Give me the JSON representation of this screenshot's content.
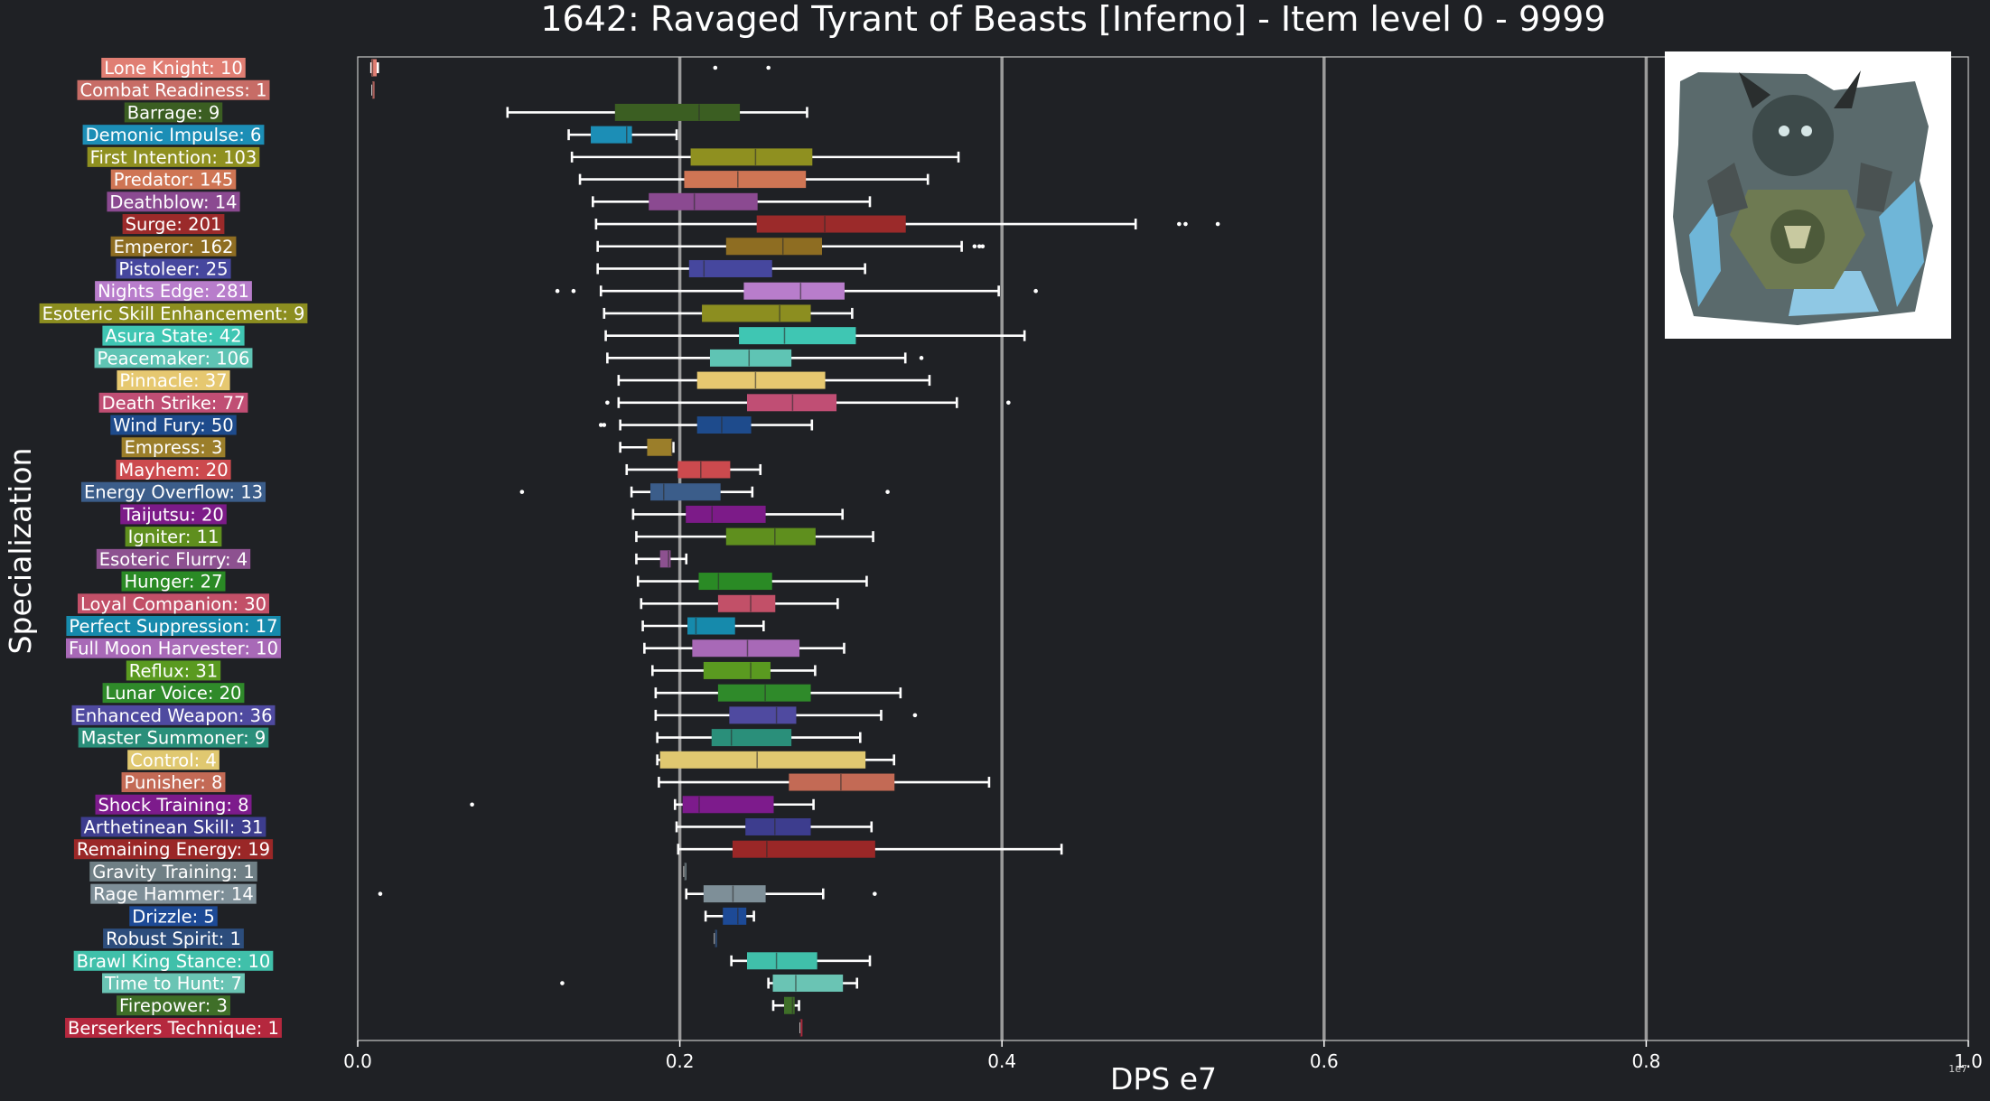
{
  "chart_data": {
    "type": "box",
    "title": "1642: Ravaged Tyrant of Beasts [Inferno] - Item level 0 - 9999",
    "xlabel": "DPS e7",
    "ylabel": "Specialization",
    "xlim": [
      0,
      1.0
    ],
    "x_ticks": [
      "0.0",
      "0.2",
      "0.4",
      "0.6",
      "0.8",
      "1.0"
    ],
    "x_exponent_label": "1e7",
    "grid": "vertical",
    "orientation": "horizontal",
    "boss_image": "boss-portrait",
    "categories": [
      {
        "label": "Lone Knight: 10",
        "color": "#e07e73",
        "whislo": 0.0085,
        "q1": 0.0088,
        "med": 0.0092,
        "q3": 0.0115,
        "whishi": 0.0125,
        "fliers": [
          0.222,
          0.255
        ]
      },
      {
        "label": "Combat Readiness: 1",
        "color": "#c76c66",
        "whislo": 0.0093,
        "q1": 0.0093,
        "med": 0.0093,
        "q3": 0.0093,
        "whishi": 0.0093,
        "fliers": []
      },
      {
        "label": "Barrage: 9",
        "color": "#3b5e22",
        "whislo": 0.093,
        "q1": 0.16,
        "med": 0.212,
        "q3": 0.237,
        "whishi": 0.279,
        "fliers": []
      },
      {
        "label": "Demonic Impulse: 6",
        "color": "#1c8eb6",
        "whislo": 0.131,
        "q1": 0.145,
        "med": 0.167,
        "q3": 0.17,
        "whishi": 0.198,
        "fliers": []
      },
      {
        "label": "First Intention: 103",
        "color": "#8f9020",
        "whislo": 0.133,
        "q1": 0.207,
        "med": 0.247,
        "q3": 0.282,
        "whishi": 0.373,
        "fliers": []
      },
      {
        "label": "Predator: 145",
        "color": "#cf7554",
        "whislo": 0.138,
        "q1": 0.203,
        "med": 0.236,
        "q3": 0.278,
        "whishi": 0.354,
        "fliers": []
      },
      {
        "label": "Deathblow: 14",
        "color": "#8b4a91",
        "whislo": 0.146,
        "q1": 0.181,
        "med": 0.209,
        "q3": 0.248,
        "whishi": 0.318,
        "fliers": []
      },
      {
        "label": "Surge: 201",
        "color": "#9b2a2a",
        "whislo": 0.148,
        "q1": 0.248,
        "med": 0.29,
        "q3": 0.34,
        "whishi": 0.483,
        "fliers": [
          0.51,
          0.514,
          0.534
        ]
      },
      {
        "label": "Emperor: 162",
        "color": "#8e6d22",
        "whislo": 0.149,
        "q1": 0.229,
        "med": 0.264,
        "q3": 0.288,
        "whishi": 0.375,
        "fliers": [
          0.383,
          0.386,
          0.388
        ]
      },
      {
        "label": "Pistoleer: 25",
        "color": "#46479e",
        "whislo": 0.149,
        "q1": 0.206,
        "med": 0.215,
        "q3": 0.257,
        "whishi": 0.315,
        "fliers": []
      },
      {
        "label": "Nights Edge: 281",
        "color": "#b87dcb",
        "whislo": 0.151,
        "q1": 0.24,
        "med": 0.275,
        "q3": 0.302,
        "whishi": 0.398,
        "fliers": [
          0.124,
          0.134,
          0.421
        ]
      },
      {
        "label": "Esoteric Skill Enhancement: 9",
        "color": "#8c8e20",
        "whislo": 0.153,
        "q1": 0.214,
        "med": 0.262,
        "q3": 0.281,
        "whishi": 0.307,
        "fliers": []
      },
      {
        "label": "Asura State: 42",
        "color": "#3fc6b3",
        "whislo": 0.154,
        "q1": 0.237,
        "med": 0.265,
        "q3": 0.309,
        "whishi": 0.414,
        "fliers": []
      },
      {
        "label": "Peacemaker: 106",
        "color": "#5fc4b4",
        "whislo": 0.155,
        "q1": 0.219,
        "med": 0.243,
        "q3": 0.269,
        "whishi": 0.34,
        "fliers": [
          0.35
        ]
      },
      {
        "label": "Pinnacle: 37",
        "color": "#e6c870",
        "whislo": 0.162,
        "q1": 0.211,
        "med": 0.247,
        "q3": 0.29,
        "whishi": 0.355,
        "fliers": []
      },
      {
        "label": "Death Strike: 77",
        "color": "#c04e74",
        "whislo": 0.162,
        "q1": 0.242,
        "med": 0.27,
        "q3": 0.297,
        "whishi": 0.372,
        "fliers": [
          0.155,
          0.404
        ]
      },
      {
        "label": "Wind Fury: 50",
        "color": "#1e4b8c",
        "whislo": 0.163,
        "q1": 0.211,
        "med": 0.226,
        "q3": 0.244,
        "whishi": 0.282,
        "fliers": [
          0.151,
          0.153
        ]
      },
      {
        "label": "Empress: 3",
        "color": "#9b7e2a",
        "whislo": 0.163,
        "q1": 0.18,
        "med": 0.195,
        "q3": 0.195,
        "whishi": 0.196,
        "fliers": []
      },
      {
        "label": "Mayhem: 20",
        "color": "#cc4a4e",
        "whislo": 0.167,
        "q1": 0.199,
        "med": 0.213,
        "q3": 0.231,
        "whishi": 0.25,
        "fliers": []
      },
      {
        "label": "Energy Overflow: 13",
        "color": "#3b5d8a",
        "whislo": 0.17,
        "q1": 0.182,
        "med": 0.19,
        "q3": 0.225,
        "whishi": 0.245,
        "fliers": [
          0.102,
          0.329
        ]
      },
      {
        "label": "Taijutsu: 20",
        "color": "#7c1b88",
        "whislo": 0.171,
        "q1": 0.204,
        "med": 0.22,
        "q3": 0.253,
        "whishi": 0.301,
        "fliers": []
      },
      {
        "label": "Igniter: 11",
        "color": "#5f8f1e",
        "whislo": 0.173,
        "q1": 0.229,
        "med": 0.259,
        "q3": 0.284,
        "whishi": 0.32,
        "fliers": []
      },
      {
        "label": "Esoteric Flurry: 4",
        "color": "#8d5190",
        "whislo": 0.173,
        "q1": 0.188,
        "med": 0.193,
        "q3": 0.194,
        "whishi": 0.204,
        "fliers": []
      },
      {
        "label": "Hunger: 27",
        "color": "#2a8a25",
        "whislo": 0.174,
        "q1": 0.212,
        "med": 0.224,
        "q3": 0.257,
        "whishi": 0.316,
        "fliers": []
      },
      {
        "label": "Loyal Companion: 30",
        "color": "#c25068",
        "whislo": 0.176,
        "q1": 0.224,
        "med": 0.244,
        "q3": 0.259,
        "whishi": 0.298,
        "fliers": []
      },
      {
        "label": "Perfect Suppression: 17",
        "color": "#168aac",
        "whislo": 0.177,
        "q1": 0.205,
        "med": 0.21,
        "q3": 0.234,
        "whishi": 0.252,
        "fliers": []
      },
      {
        "label": "Full Moon Harvester: 10",
        "color": "#a869b7",
        "whislo": 0.178,
        "q1": 0.208,
        "med": 0.242,
        "q3": 0.274,
        "whishi": 0.302,
        "fliers": []
      },
      {
        "label": "Reflux: 31",
        "color": "#5a9a20",
        "whislo": 0.183,
        "q1": 0.215,
        "med": 0.244,
        "q3": 0.256,
        "whishi": 0.284,
        "fliers": []
      },
      {
        "label": "Lunar Voice: 20",
        "color": "#2f8a2a",
        "whislo": 0.185,
        "q1": 0.224,
        "med": 0.253,
        "q3": 0.281,
        "whishi": 0.337,
        "fliers": []
      },
      {
        "label": "Enhanced Weapon: 36",
        "color": "#4f4aa0",
        "whislo": 0.185,
        "q1": 0.231,
        "med": 0.26,
        "q3": 0.272,
        "whishi": 0.325,
        "fliers": [
          0.346
        ]
      },
      {
        "label": "Master Summoner: 9",
        "color": "#2a8f7a",
        "whislo": 0.186,
        "q1": 0.22,
        "med": 0.232,
        "q3": 0.269,
        "whishi": 0.312,
        "fliers": []
      },
      {
        "label": "Control: 4",
        "color": "#e0c870",
        "whislo": 0.186,
        "q1": 0.188,
        "med": 0.248,
        "q3": 0.315,
        "whishi": 0.333,
        "fliers": []
      },
      {
        "label": "Punisher: 8",
        "color": "#c36a55",
        "whislo": 0.187,
        "q1": 0.268,
        "med": 0.3,
        "q3": 0.333,
        "whishi": 0.392,
        "fliers": []
      },
      {
        "label": "Shock Training: 8",
        "color": "#7d1b8c",
        "whislo": 0.197,
        "q1": 0.202,
        "med": 0.212,
        "q3": 0.258,
        "whishi": 0.283,
        "fliers": [
          0.071
        ]
      },
      {
        "label": "Arthetinean Skill: 31",
        "color": "#3d3d8e",
        "whislo": 0.198,
        "q1": 0.241,
        "med": 0.259,
        "q3": 0.281,
        "whishi": 0.319,
        "fliers": []
      },
      {
        "label": "Remaining Energy: 19",
        "color": "#9a2727",
        "whislo": 0.199,
        "q1": 0.233,
        "med": 0.254,
        "q3": 0.321,
        "whishi": 0.437,
        "fliers": []
      },
      {
        "label": "Gravity Training: 1",
        "color": "#6f7f85",
        "whislo": 0.203,
        "q1": 0.203,
        "med": 0.203,
        "q3": 0.203,
        "whishi": 0.203,
        "fliers": []
      },
      {
        "label": "Rage Hammer: 14",
        "color": "#7e8f98",
        "whislo": 0.204,
        "q1": 0.215,
        "med": 0.233,
        "q3": 0.253,
        "whishi": 0.289,
        "fliers": [
          0.014,
          0.321
        ]
      },
      {
        "label": "Drizzle: 5",
        "color": "#1d4a96",
        "whislo": 0.216,
        "q1": 0.227,
        "med": 0.236,
        "q3": 0.241,
        "whishi": 0.246,
        "fliers": []
      },
      {
        "label": "Robust Spirit: 1",
        "color": "#2c4d7c",
        "whislo": 0.222,
        "q1": 0.222,
        "med": 0.222,
        "q3": 0.222,
        "whishi": 0.222,
        "fliers": []
      },
      {
        "label": "Brawl King Stance: 10",
        "color": "#40c0aa",
        "whislo": 0.232,
        "q1": 0.242,
        "med": 0.26,
        "q3": 0.285,
        "whishi": 0.318,
        "fliers": []
      },
      {
        "label": "Time to Hunt: 7",
        "color": "#6ac4b4",
        "whislo": 0.255,
        "q1": 0.258,
        "med": 0.272,
        "q3": 0.301,
        "whishi": 0.31,
        "fliers": [
          0.127
        ]
      },
      {
        "label": "Firepower: 3",
        "color": "#3f6f28",
        "whislo": 0.258,
        "q1": 0.265,
        "med": 0.27,
        "q3": 0.271,
        "whishi": 0.274,
        "fliers": []
      },
      {
        "label": "Berserkers Technique: 1",
        "color": "#b5283e",
        "whislo": 0.275,
        "q1": 0.275,
        "med": 0.275,
        "q3": 0.275,
        "whishi": 0.275,
        "fliers": []
      }
    ]
  }
}
